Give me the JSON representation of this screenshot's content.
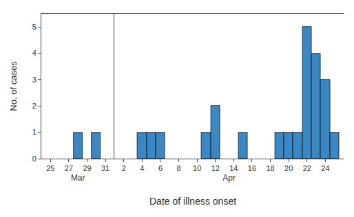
{
  "xlabel": "Date of illness onset",
  "chart_data": [
    {
      "type": "bar",
      "xlabel": "Mar",
      "ylabel": "No. of cases",
      "x": [
        28,
        30
      ],
      "values": [
        1,
        1
      ],
      "color": "#3b87c4",
      "xlim": [
        24,
        32
      ],
      "xticks": [
        25,
        27,
        29,
        31
      ],
      "ylim": [
        0,
        5.5
      ],
      "yticks": [
        0,
        1,
        2,
        3,
        4,
        5
      ],
      "grid": false
    },
    {
      "type": "bar",
      "xlabel": "Apr",
      "x": [
        4,
        5,
        6,
        11,
        12,
        15,
        19,
        20,
        21,
        22,
        23,
        24,
        25
      ],
      "values": [
        1,
        1,
        1,
        1,
        2,
        1,
        1,
        1,
        1,
        5,
        4,
        3,
        1
      ],
      "color": "#3b87c4",
      "xlim": [
        1,
        26
      ],
      "xticks": [
        2,
        4,
        6,
        8,
        10,
        12,
        14,
        16,
        18,
        20,
        22,
        24
      ],
      "ylim": [
        0,
        5.5
      ],
      "tick_labels": "x",
      "grid": false
    }
  ]
}
